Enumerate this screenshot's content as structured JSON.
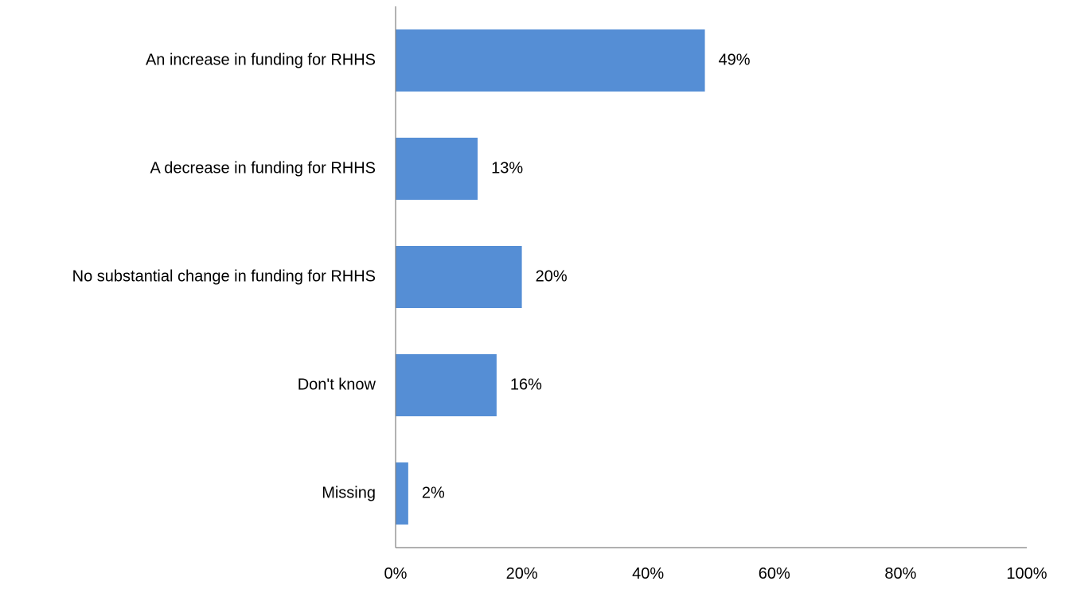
{
  "chart_data": {
    "type": "bar",
    "orientation": "horizontal",
    "categories": [
      "An increase in funding for RHHS",
      "A decrease in funding for RHHS",
      "No substantial change in funding for RHHS",
      "Don't know",
      "Missing"
    ],
    "values": [
      49,
      13,
      20,
      16,
      2
    ],
    "value_labels": [
      "49%",
      "13%",
      "20%",
      "16%",
      "2%"
    ],
    "title": "",
    "xlabel": "",
    "ylabel": "",
    "xlim": [
      0,
      100
    ],
    "x_ticks": [
      0,
      20,
      40,
      60,
      80,
      100
    ],
    "x_tick_labels": [
      "0%",
      "20%",
      "40%",
      "60%",
      "80%",
      "100%"
    ],
    "grid": false,
    "legend": "none",
    "bar_color": "#558ED5"
  }
}
